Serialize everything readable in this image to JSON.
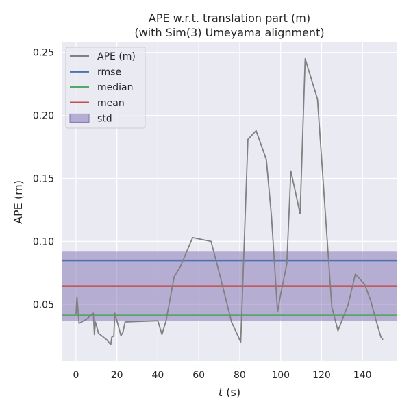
{
  "chart_data": {
    "type": "line",
    "title": "APE w.r.t. translation part (m)",
    "subtitle": "(with Sim(3) Umeyama alignment)",
    "xlabel_var": "t",
    "xlabel_unit": " (s)",
    "ylabel": "APE (m)",
    "xlim": [
      -7,
      157
    ],
    "ylim": [
      0.005,
      0.258
    ],
    "xticks": [
      0,
      20,
      40,
      60,
      80,
      100,
      120,
      140
    ],
    "yticks": [
      0.05,
      0.1,
      0.15,
      0.2,
      0.25
    ],
    "ytick_labels": [
      "0.05",
      "0.10",
      "0.15",
      "0.20",
      "0.25"
    ],
    "grid": true,
    "legend_position": "top-left",
    "series": [
      {
        "name": "APE (m)",
        "color": "#808080",
        "x": [
          0,
          0.5,
          1.5,
          5,
          8.5,
          9,
          9.5,
          11,
          15,
          17,
          17.5,
          18.5,
          19,
          22,
          23,
          24,
          40,
          42,
          44,
          48,
          51,
          57,
          66,
          70,
          76,
          80.5,
          84,
          88,
          93,
          95.5,
          98.5,
          100,
          103,
          105,
          109.5,
          112,
          118,
          125,
          128,
          133,
          136.5,
          141,
          144,
          146.5,
          149,
          150
        ],
        "y": [
          0.042,
          0.056,
          0.035,
          0.038,
          0.043,
          0.026,
          0.036,
          0.027,
          0.022,
          0.018,
          0.024,
          0.025,
          0.043,
          0.025,
          0.028,
          0.036,
          0.037,
          0.026,
          0.037,
          0.072,
          0.08,
          0.103,
          0.1,
          0.075,
          0.036,
          0.02,
          0.181,
          0.188,
          0.165,
          0.12,
          0.044,
          0.058,
          0.082,
          0.156,
          0.122,
          0.245,
          0.213,
          0.048,
          0.029,
          0.05,
          0.074,
          0.066,
          0.053,
          0.038,
          0.024,
          0.022
        ]
      }
    ],
    "rmse": 0.0849,
    "median": 0.0412,
    "mean": 0.0645,
    "std_band": [
      0.0371,
      0.0919
    ],
    "legend": [
      {
        "label": "APE (m)",
        "kind": "line",
        "color": "#808080"
      },
      {
        "label": "rmse",
        "kind": "line",
        "color": "#4c72b0"
      },
      {
        "label": "median",
        "kind": "line",
        "color": "#55a868"
      },
      {
        "label": "mean",
        "kind": "line",
        "color": "#c44e52"
      },
      {
        "label": "std",
        "kind": "patch",
        "color": "#8172b2"
      }
    ],
    "colors": {
      "background": "#eaeaf2",
      "grid": "#ffffff",
      "rmse": "#4c72b0",
      "median": "#55a868",
      "mean": "#c44e52",
      "std": "#8172b2",
      "ape": "#808080"
    }
  }
}
